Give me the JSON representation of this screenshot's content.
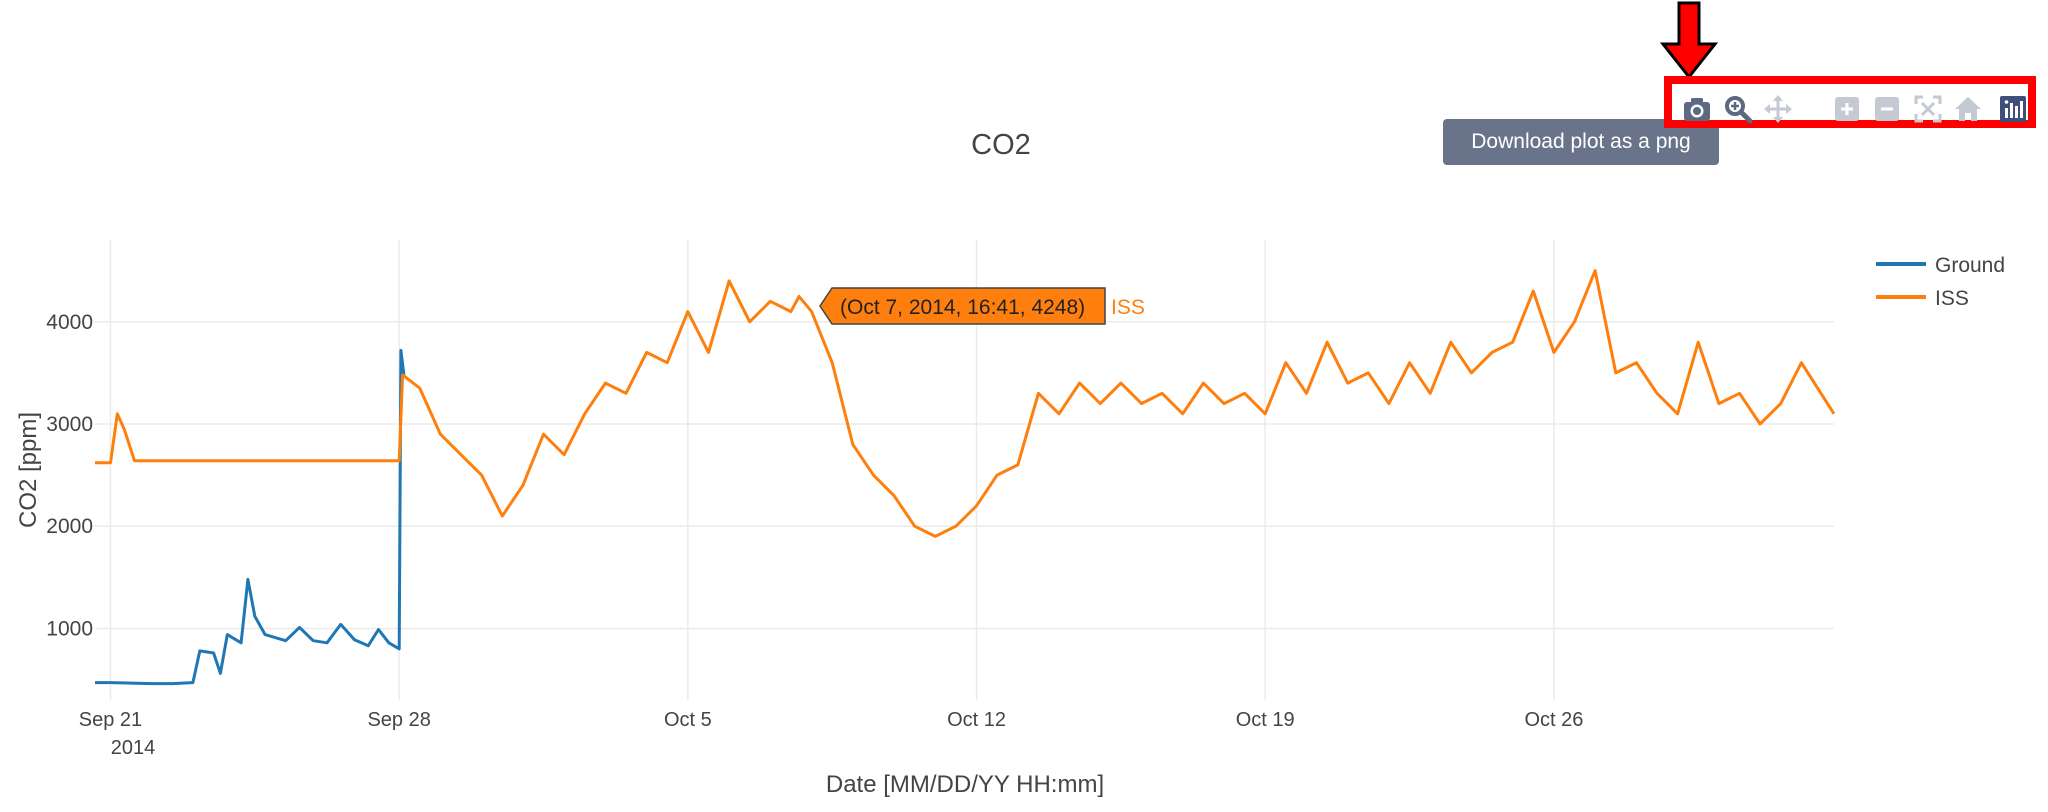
{
  "chart_data": {
    "type": "line",
    "title": "CO2",
    "xlabel": "Date [MM/DD/YY HH:mm]",
    "ylabel": "CO2 [ppm]",
    "x_ticks": [
      "Sep 21",
      "Sep 28",
      "Oct 5",
      "Oct 12",
      "Oct 19",
      "Oct 26"
    ],
    "x_tick_year": "2014",
    "x_range": [
      "2014-09-20T15:00",
      "2014-11-01T19:00"
    ],
    "y_ticks": [
      "1000",
      "2000",
      "3000",
      "4000"
    ],
    "y_range": [
      300,
      4800
    ],
    "grid": true,
    "legend_placement": "top-right",
    "series": [
      {
        "name": "Ground",
        "color": "#1f77b4",
        "points": [
          [
            "2014-09-20T15:00",
            470
          ],
          [
            "2014-09-21T00:00",
            470
          ],
          [
            "2014-09-21T12:00",
            465
          ],
          [
            "2014-09-22T00:00",
            460
          ],
          [
            "2014-09-22T12:00",
            460
          ],
          [
            "2014-09-23T00:00",
            470
          ],
          [
            "2014-09-23T04:00",
            780
          ],
          [
            "2014-09-23T12:00",
            760
          ],
          [
            "2014-09-23T16:00",
            560
          ],
          [
            "2014-09-23T20:00",
            940
          ],
          [
            "2014-09-24T04:00",
            860
          ],
          [
            "2014-09-24T08:00",
            1480
          ],
          [
            "2014-09-24T12:00",
            1120
          ],
          [
            "2014-09-24T18:00",
            940
          ],
          [
            "2014-09-25T06:00",
            880
          ],
          [
            "2014-09-25T14:00",
            1010
          ],
          [
            "2014-09-25T22:00",
            880
          ],
          [
            "2014-09-26T06:00",
            860
          ],
          [
            "2014-09-26T14:00",
            1040
          ],
          [
            "2014-09-26T22:00",
            890
          ],
          [
            "2014-09-27T06:00",
            830
          ],
          [
            "2014-09-27T12:00",
            990
          ],
          [
            "2014-09-27T18:00",
            860
          ],
          [
            "2014-09-27T22:00",
            820
          ],
          [
            "2014-09-28T00:00",
            800
          ],
          [
            "2014-09-28T01:00",
            3720
          ],
          [
            "2014-09-28T03:00",
            3450
          ]
        ]
      },
      {
        "name": "ISS",
        "color": "#ff7f0e",
        "points": [
          [
            "2014-09-20T15:00",
            2620
          ],
          [
            "2014-09-21T00:00",
            2620
          ],
          [
            "2014-09-21T04:00",
            3100
          ],
          [
            "2014-09-21T08:00",
            2950
          ],
          [
            "2014-09-21T14:00",
            2640
          ],
          [
            "2014-09-22T00:00",
            2640
          ],
          [
            "2014-09-25T00:00",
            2640
          ],
          [
            "2014-09-28T00:00",
            2640
          ],
          [
            "2014-09-28T02:00",
            3480
          ],
          [
            "2014-09-28T12:00",
            3350
          ],
          [
            "2014-09-29T00:00",
            2900
          ],
          [
            "2014-09-29T12:00",
            2700
          ],
          [
            "2014-09-30T00:00",
            2500
          ],
          [
            "2014-09-30T12:00",
            2100
          ],
          [
            "2014-10-01T00:00",
            2400
          ],
          [
            "2014-10-01T12:00",
            2900
          ],
          [
            "2014-10-02T00:00",
            2700
          ],
          [
            "2014-10-02T12:00",
            3100
          ],
          [
            "2014-10-03T00:00",
            3400
          ],
          [
            "2014-10-03T12:00",
            3300
          ],
          [
            "2014-10-04T00:00",
            3700
          ],
          [
            "2014-10-04T12:00",
            3600
          ],
          [
            "2014-10-05T00:00",
            4100
          ],
          [
            "2014-10-05T12:00",
            3700
          ],
          [
            "2014-10-06T00:00",
            4400
          ],
          [
            "2014-10-06T12:00",
            4000
          ],
          [
            "2014-10-07T00:00",
            4200
          ],
          [
            "2014-10-07T12:00",
            4100
          ],
          [
            "2014-10-07T16:41",
            4248
          ],
          [
            "2014-10-08T00:00",
            4100
          ],
          [
            "2014-10-08T12:00",
            3600
          ],
          [
            "2014-10-09T00:00",
            2800
          ],
          [
            "2014-10-09T12:00",
            2500
          ],
          [
            "2014-10-10T00:00",
            2300
          ],
          [
            "2014-10-10T12:00",
            2000
          ],
          [
            "2014-10-11T00:00",
            1900
          ],
          [
            "2014-10-11T12:00",
            2000
          ],
          [
            "2014-10-12T00:00",
            2200
          ],
          [
            "2014-10-12T12:00",
            2500
          ],
          [
            "2014-10-13T00:00",
            2600
          ],
          [
            "2014-10-13T12:00",
            3300
          ],
          [
            "2014-10-14T00:00",
            3100
          ],
          [
            "2014-10-14T12:00",
            3400
          ],
          [
            "2014-10-15T00:00",
            3200
          ],
          [
            "2014-10-15T12:00",
            3400
          ],
          [
            "2014-10-16T00:00",
            3200
          ],
          [
            "2014-10-16T12:00",
            3300
          ],
          [
            "2014-10-17T00:00",
            3100
          ],
          [
            "2014-10-17T12:00",
            3400
          ],
          [
            "2014-10-18T00:00",
            3200
          ],
          [
            "2014-10-18T12:00",
            3300
          ],
          [
            "2014-10-19T00:00",
            3100
          ],
          [
            "2014-10-19T12:00",
            3600
          ],
          [
            "2014-10-20T00:00",
            3300
          ],
          [
            "2014-10-20T12:00",
            3800
          ],
          [
            "2014-10-21T00:00",
            3400
          ],
          [
            "2014-10-21T12:00",
            3500
          ],
          [
            "2014-10-22T00:00",
            3200
          ],
          [
            "2014-10-22T12:00",
            3600
          ],
          [
            "2014-10-23T00:00",
            3300
          ],
          [
            "2014-10-23T12:00",
            3800
          ],
          [
            "2014-10-24T00:00",
            3500
          ],
          [
            "2014-10-24T12:00",
            3700
          ],
          [
            "2014-10-25T00:00",
            3800
          ],
          [
            "2014-10-25T12:00",
            4300
          ],
          [
            "2014-10-26T00:00",
            3700
          ],
          [
            "2014-10-26T12:00",
            4000
          ],
          [
            "2014-10-27T00:00",
            4500
          ],
          [
            "2014-10-27T12:00",
            3500
          ],
          [
            "2014-10-28T00:00",
            3600
          ],
          [
            "2014-10-28T12:00",
            3300
          ],
          [
            "2014-10-29T00:00",
            3100
          ],
          [
            "2014-10-29T12:00",
            3800
          ],
          [
            "2014-10-30T00:00",
            3200
          ],
          [
            "2014-10-30T12:00",
            3300
          ],
          [
            "2014-10-31T00:00",
            3000
          ],
          [
            "2014-10-31T12:00",
            3200
          ],
          [
            "2014-11-01T00:00",
            3600
          ],
          [
            "2014-11-01T19:00",
            3100
          ]
        ]
      }
    ],
    "hover_label": {
      "text": "(Oct 7, 2014, 16:41, 4248)",
      "series": "ISS",
      "color": "#ff7f0e"
    }
  },
  "toolbar": {
    "tooltip": "Download plot as a png",
    "icons": [
      "camera-icon",
      "zoom-icon",
      "pan-icon",
      "zoom-in-icon",
      "zoom-out-icon",
      "autoscale-icon",
      "reset-axes-icon",
      "plotly-logo-icon"
    ],
    "highlight_color": "#ff0000"
  }
}
